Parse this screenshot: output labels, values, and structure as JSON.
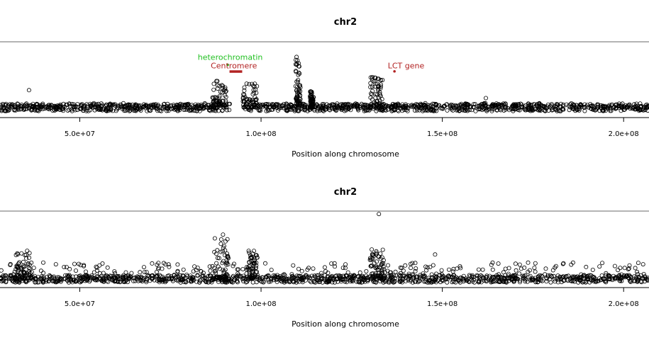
{
  "chart_data": [
    {
      "type": "scatter",
      "title": "chr2",
      "xlabel": "Position along chromosome",
      "ylabel": "",
      "xlim": [
        28000000,
        207000000
      ],
      "ylim": [
        0,
        1
      ],
      "x_ticks": [
        {
          "value": 50000000,
          "label": "5.0e+07"
        },
        {
          "value": 100000000,
          "label": "1.0e+08"
        },
        {
          "value": 150000000,
          "label": "1.5e+08"
        },
        {
          "value": 200000000,
          "label": "2.0e+08"
        }
      ],
      "baseline": 0.12,
      "noise_high": 0.06,
      "gap_ranges": [
        [
          91500000,
          95000000
        ]
      ],
      "cluster_regions": [
        {
          "x": [
            86500000,
            90500000
          ],
          "ymax": 0.5
        },
        {
          "x": [
            95000000,
            99000000
          ],
          "ymax": 0.45
        },
        {
          "x": [
            109500000,
            111000000
          ],
          "ymax": 0.78
        },
        {
          "x": [
            113500000,
            114500000
          ],
          "ymax": 0.35
        },
        {
          "x": [
            130000000,
            133500000
          ],
          "ymax": 0.55
        }
      ],
      "points": [
        {
          "x": 36000000,
          "y": 0.36
        },
        {
          "x": 109800000,
          "y": 0.82
        },
        {
          "x": 133500000,
          "y": 0.5
        },
        {
          "x": 162000000,
          "y": 0.25
        }
      ],
      "annotations": [
        {
          "text": "heterochromatin",
          "x": 91500000,
          "y": 0.78,
          "color": "#22c022",
          "mark": "dot",
          "mark_x": 90800000,
          "mark_y": 0.71
        },
        {
          "text": "Centromere",
          "x": 92500000,
          "y": 0.66,
          "color": "#b22222",
          "mark": "bar",
          "mark_x0": 91300000,
          "mark_x1": 94800000,
          "mark_y": 0.62
        },
        {
          "text": "LCT gene",
          "x": 140000000,
          "y": 0.66,
          "color": "#b22222",
          "mark": "dot",
          "mark_x": 136800000,
          "mark_y": 0.62
        }
      ]
    },
    {
      "type": "scatter",
      "title": "chr2",
      "xlabel": "Position along chromosome",
      "ylabel": "",
      "xlim": [
        28000000,
        207000000
      ],
      "ylim": [
        0,
        1
      ],
      "x_ticks": [
        {
          "value": 50000000,
          "label": "5.0e+07"
        },
        {
          "value": 100000000,
          "label": "1.0e+08"
        },
        {
          "value": 150000000,
          "label": "1.5e+08"
        },
        {
          "value": 200000000,
          "label": "2.0e+08"
        }
      ],
      "baseline": 0.1,
      "noise_high": 0.22,
      "gap_ranges": [],
      "cluster_regions": [
        {
          "x": [
            86500000,
            91000000
          ],
          "ymax": 0.65
        },
        {
          "x": [
            96000000,
            99000000
          ],
          "ymax": 0.5
        },
        {
          "x": [
            130000000,
            134000000
          ],
          "ymax": 0.55
        },
        {
          "x": [
            32000000,
            37000000
          ],
          "ymax": 0.45
        }
      ],
      "points": [
        {
          "x": 132500000,
          "y": 0.98
        },
        {
          "x": 89500000,
          "y": 0.7
        },
        {
          "x": 148000000,
          "y": 0.43
        },
        {
          "x": 35500000,
          "y": 0.48
        }
      ],
      "annotations": []
    }
  ]
}
